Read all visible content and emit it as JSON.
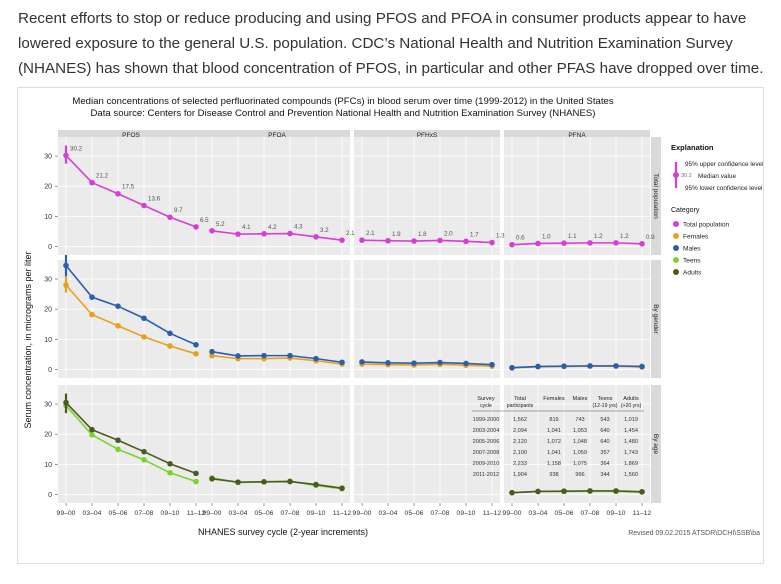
{
  "intro_text": "Recent efforts to stop or reduce producing and using PFOS and PFOA in consumer products appear to have lowered exposure to the general U.S. population. CDC’s National Health and Nutrition Examination Survey (NHANES) has shown that blood concentration of PFOS, in particular and other PFAS have dropped over time. (Figure 2).",
  "colors": {
    "total": "#d63fd6",
    "females": "#e8a11e",
    "males": "#2a5fb0",
    "teens": "#7bd42a",
    "adults": "#4a5a22",
    "panel_bg": "#ebebeb",
    "strip_bg": "#d9d9d9"
  },
  "chart_data": {
    "type": "line",
    "title": "Median concentrations of selected perfluorinated compounds (PFCs) in blood serum over time (1999-2012) in the United States",
    "subtitle": "Data source: Centers for Disease Control and Prevention National Health and Nutrition Examination Survey (NHANES)",
    "xlabel": "NHANES survey cycle (2-year increments)",
    "ylabel": "Serum concentration, in micrograms per liter",
    "ylim": [
      0,
      35
    ],
    "yticks": [
      0,
      10,
      20,
      30
    ],
    "categories": [
      "99–00",
      "03–04",
      "05–06",
      "07–08",
      "09–10",
      "11–12"
    ],
    "compounds": [
      "PFOS",
      "PFOA",
      "PFHxS",
      "PFNA"
    ],
    "rows": [
      "Total population",
      "By gender",
      "By age"
    ],
    "total": {
      "PFOS": [
        30.2,
        21.2,
        17.5,
        13.6,
        9.7,
        6.5
      ],
      "PFOA": [
        5.2,
        4.1,
        4.2,
        4.3,
        3.2,
        2.1
      ],
      "PFHxS": [
        2.1,
        1.9,
        1.8,
        2.0,
        1.7,
        1.3
      ],
      "PFNA": [
        0.6,
        1.0,
        1.1,
        1.2,
        1.2,
        0.9
      ]
    },
    "total_labels": {
      "PFOS": [
        "30.2",
        "21.2",
        "17.5",
        "13.6",
        "9.7",
        "6.5"
      ],
      "PFOA": [
        "5.2",
        "4.1",
        "4.2",
        "4.3",
        "3.2",
        "2.1"
      ],
      "PFHxS": [
        "2.1",
        "1.9",
        "1.8",
        "2.0",
        "1.7",
        "1.3"
      ],
      "PFNA": [
        "0.6",
        "1.0",
        "1.1",
        "1.2",
        "1.2",
        "0.9"
      ]
    },
    "total_ci": {
      "PFOS": [
        [
          27.5,
          33.5
        ],
        null,
        null,
        null,
        null,
        null
      ]
    },
    "gender": {
      "Males": {
        "PFOS": [
          34.5,
          24,
          21,
          17,
          12,
          8.2
        ],
        "PFOA": [
          5.9,
          4.5,
          4.6,
          4.6,
          3.6,
          2.4
        ],
        "PFHxS": [
          2.5,
          2.2,
          2.1,
          2.3,
          2.0,
          1.6
        ],
        "PFNA": [
          0.6,
          1.0,
          1.1,
          1.2,
          1.2,
          1.0
        ]
      },
      "Females": {
        "PFOS": [
          28,
          18.2,
          14.5,
          10.8,
          7.8,
          5.2
        ],
        "PFOA": [
          4.6,
          3.6,
          3.6,
          3.8,
          2.9,
          1.8
        ],
        "PFHxS": [
          1.8,
          1.6,
          1.5,
          1.7,
          1.4,
          1.1
        ],
        "PFNA": [
          0.5,
          0.9,
          1.0,
          1.1,
          1.1,
          0.8
        ]
      },
      "ci": {
        "Males_PFOS_0": [
          31,
          38
        ],
        "Females_PFOS_0": [
          25.5,
          31
        ]
      }
    },
    "age": {
      "Adults": {
        "PFOS": [
          30.5,
          21.5,
          18,
          14.2,
          10.2,
          7.0
        ],
        "PFOA": [
          5.2,
          4.1,
          4.2,
          4.3,
          3.3,
          2.1
        ],
        "PFHxS": [
          2.1,
          1.9,
          1.8,
          2.0,
          1.7,
          1.3
        ],
        "PFNA": [
          0.6,
          1.0,
          1.1,
          1.2,
          1.2,
          0.9
        ]
      },
      "Teens": {
        "PFOS": [
          29.5,
          19.8,
          15,
          11.5,
          7.2,
          4.3
        ],
        "PFOA": [
          5.5,
          4.0,
          4.2,
          4.4,
          3.0,
          1.9
        ],
        "PFHxS": [
          2.6,
          2.3,
          2.0,
          2.2,
          1.9,
          1.4
        ],
        "PFNA": [
          0.6,
          1.0,
          1.0,
          1.1,
          1.0,
          0.8
        ]
      },
      "ci": {
        "Adults_PFOS_0": [
          27,
          33.5
        ]
      }
    },
    "legend": {
      "explanation_title": "Explanation",
      "upper_ci": "95% upper confidence level",
      "median_value": "Median value",
      "median_sample": "30.2",
      "lower_ci": "95% lower confidence level",
      "category_title": "Category",
      "items": [
        "Total population",
        "Females",
        "Males",
        "Teens",
        "Adults"
      ]
    },
    "table": {
      "headers": [
        "Survey cycle",
        "Total participants",
        "Females",
        "Males",
        "Teens (12-19 yrs)",
        "Adults (>20 yrs)"
      ],
      "rows": [
        [
          "1999-2000",
          "1,562",
          "819",
          "743",
          "543",
          "1,019"
        ],
        [
          "2003-2004",
          "2,094",
          "1,041",
          "1,053",
          "640",
          "1,454"
        ],
        [
          "2005-2006",
          "2,120",
          "1,072",
          "1,048",
          "640",
          "1,480"
        ],
        [
          "2007-2008",
          "2,100",
          "1,041",
          "1,059",
          "357",
          "1,743"
        ],
        [
          "2009-2010",
          "2,233",
          "1,158",
          "1,075",
          "364",
          "1,869"
        ],
        [
          "2011-2012",
          "1,904",
          "938",
          "966",
          "344",
          "1,560"
        ]
      ]
    },
    "footer_note": "Revised 09.02.2015 ATSDR\\DCHI\\SSB\\ba"
  }
}
